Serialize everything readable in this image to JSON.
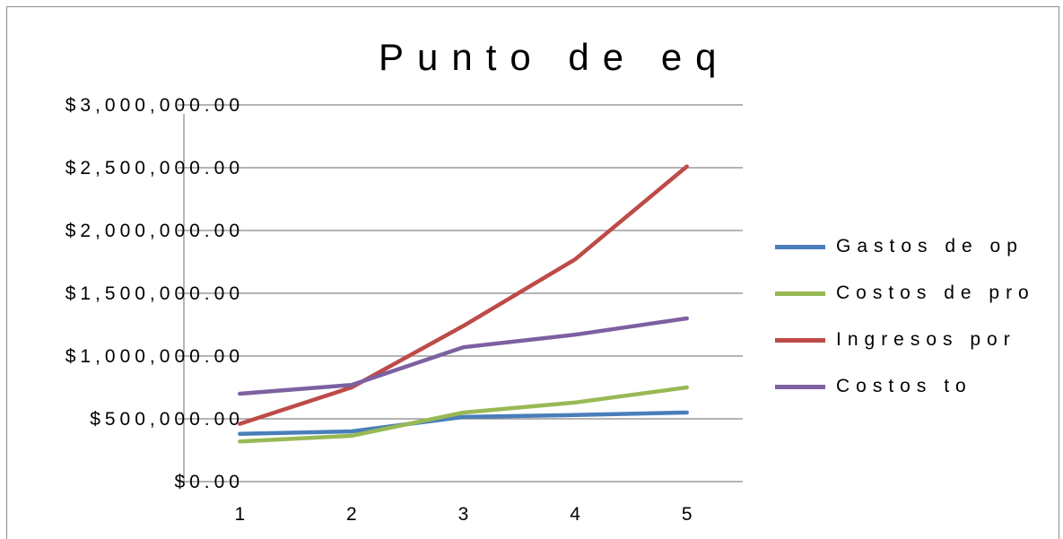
{
  "chart_data": {
    "type": "line",
    "title": "Punto de eq",
    "categories": [
      "1",
      "2",
      "3",
      "4",
      "5"
    ],
    "y_ticks": [
      "$0.00",
      "$500,000.00",
      "$1,000,000.00",
      "$1,500,000.00",
      "$2,000,000.00",
      "$2,500,000.00",
      "$3,000,000.00"
    ],
    "ylim": [
      0,
      3000000
    ],
    "grid": true,
    "legend_position": "right",
    "series": [
      {
        "name": "Gastos de op",
        "color": "#4a7ebb",
        "values": [
          380000,
          400000,
          515000,
          530000,
          550000
        ]
      },
      {
        "name": "Costos de pro",
        "color": "#98b954",
        "values": [
          320000,
          365000,
          550000,
          630000,
          750000
        ]
      },
      {
        "name": "Ingresos por",
        "color": "#be4b48",
        "values": [
          460000,
          750000,
          1240000,
          1770000,
          2510000
        ]
      },
      {
        "name": "Costos to",
        "color": "#7d60a0",
        "values": [
          700000,
          770000,
          1070000,
          1170000,
          1300000
        ]
      }
    ]
  }
}
